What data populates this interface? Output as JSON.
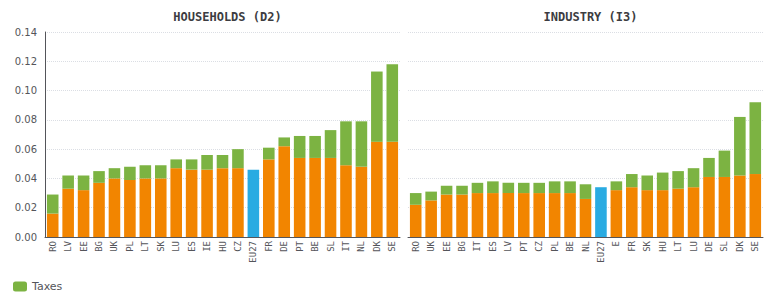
{
  "chart_data": [
    {
      "type": "bar",
      "stacked": true,
      "title": "HOUSEHOLDS (D2)",
      "categories": [
        "RO",
        "LV",
        "EE",
        "BG",
        "UK",
        "PL",
        "LT",
        "SK",
        "LU",
        "ES",
        "IE",
        "HU",
        "CZ",
        "EU27",
        "FR",
        "DE",
        "PT",
        "BE",
        "SL",
        "IT",
        "NL",
        "DK",
        "SE"
      ],
      "series": [
        {
          "values": [
            0.016,
            0.033,
            0.032,
            0.037,
            0.04,
            0.039,
            0.04,
            0.04,
            0.047,
            0.046,
            0.046,
            0.047,
            0.047,
            0.046,
            0.053,
            0.062,
            0.054,
            0.054,
            0.054,
            0.049,
            0.048,
            0.065,
            0.065
          ],
          "colors": [
            "#F28500",
            "#F28500",
            "#F28500",
            "#F28500",
            "#F28500",
            "#F28500",
            "#F28500",
            "#F28500",
            "#F28500",
            "#F28500",
            "#F28500",
            "#F28500",
            "#F28500",
            "#29ABE2",
            "#F28500",
            "#F28500",
            "#F28500",
            "#F28500",
            "#F28500",
            "#F28500",
            "#F28500",
            "#F28500",
            "#F28500"
          ]
        },
        {
          "name": "Taxes",
          "color": "#7CB342",
          "values": [
            0.013,
            0.009,
            0.01,
            0.008,
            0.007,
            0.009,
            0.009,
            0.009,
            0.006,
            0.007,
            0.01,
            0.009,
            0.013,
            0.0,
            0.008,
            0.006,
            0.015,
            0.015,
            0.019,
            0.03,
            0.031,
            0.048,
            0.053
          ]
        }
      ],
      "ylim": [
        0,
        0.14
      ],
      "yticks": [
        {
          "value": 0,
          "label": "0.00"
        },
        0.02,
        0.04,
        0.06,
        0.08,
        {
          "value": 0.1,
          "label": "0.10"
        },
        0.12,
        0.14
      ],
      "grid": true,
      "legend": "lower left"
    },
    {
      "type": "bar",
      "stacked": true,
      "title": "INDUSTRY (I3)",
      "categories": [
        "RO",
        "UK",
        "EE",
        "BG",
        "IT",
        "ES",
        "LV",
        "PT",
        "CZ",
        "PL",
        "BE",
        "NL",
        "EU27",
        "E",
        "FR",
        "SK",
        "HU",
        "LT",
        "LU",
        "DE",
        "SL",
        "DK",
        "SE"
      ],
      "series": [
        {
          "values": [
            0.022,
            0.025,
            0.029,
            0.029,
            0.03,
            0.03,
            0.03,
            0.03,
            0.03,
            0.03,
            0.03,
            0.026,
            0.034,
            0.032,
            0.034,
            0.032,
            0.032,
            0.033,
            0.034,
            0.041,
            0.041,
            0.042,
            0.043
          ],
          "colors": [
            "#F28500",
            "#F28500",
            "#F28500",
            "#F28500",
            "#F28500",
            "#F28500",
            "#F28500",
            "#F28500",
            "#F28500",
            "#F28500",
            "#F28500",
            "#F28500",
            "#29ABE2",
            "#F28500",
            "#F28500",
            "#F28500",
            "#F28500",
            "#F28500",
            "#F28500",
            "#F28500",
            "#F28500",
            "#F28500",
            "#F28500"
          ]
        },
        {
          "name": "Taxes",
          "color": "#7CB342",
          "values": [
            0.008,
            0.006,
            0.006,
            0.006,
            0.007,
            0.008,
            0.007,
            0.007,
            0.007,
            0.008,
            0.008,
            0.01,
            0.0,
            0.006,
            0.009,
            0.01,
            0.012,
            0.012,
            0.013,
            0.013,
            0.018,
            0.04,
            0.049
          ]
        }
      ],
      "ylim": [
        0,
        0.14
      ],
      "yticks": [
        {
          "value": 0,
          "label": "0.00"
        },
        0.02,
        0.04,
        0.06,
        0.08,
        {
          "value": 0.1,
          "label": "0.10"
        },
        0.12,
        0.14
      ],
      "grid": true,
      "tick_labels": "x"
    }
  ]
}
